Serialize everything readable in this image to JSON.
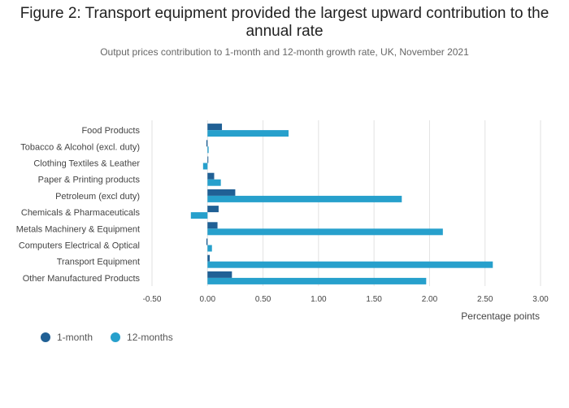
{
  "chart_data": {
    "type": "bar",
    "orientation": "horizontal",
    "title": "Figure 2: Transport equipment provided the largest upward contribution to the annual rate",
    "subtitle": "Output prices contribution to 1-month and 12-month growth rate, UK, November 2021",
    "xlabel": "Percentage points",
    "ylabel": "",
    "xlim": [
      -0.5,
      3.0
    ],
    "xticks": [
      -0.5,
      0,
      0.5,
      1,
      1.5,
      2,
      2.5,
      3
    ],
    "xtick_labels": [
      "-0.50",
      "0.00",
      "0.50",
      "1.00",
      "1.50",
      "2.00",
      "2.50",
      "3.00"
    ],
    "grid": true,
    "legend_position": "bottom-left",
    "categories": [
      "Food Products",
      "Tobacco & Alcohol (excl. duty)",
      "Clothing Textiles & Leather",
      "Paper & Printing products",
      "Petroleum (excl duty)",
      "Chemicals & Pharmaceuticals",
      "Metals Machinery & Equipment",
      "Computers Electrical & Optical",
      "Transport Equipment",
      "Other Manufactured Products"
    ],
    "series": [
      {
        "name": "1-month",
        "color": "#206095",
        "values": [
          0.13,
          -0.01,
          0.0,
          0.06,
          0.25,
          0.1,
          0.09,
          -0.01,
          0.02,
          0.22
        ]
      },
      {
        "name": "12-months",
        "color": "#27a0cc",
        "values": [
          0.73,
          0.01,
          -0.04,
          0.12,
          1.75,
          -0.15,
          2.12,
          0.04,
          2.57,
          1.97
        ]
      }
    ]
  }
}
